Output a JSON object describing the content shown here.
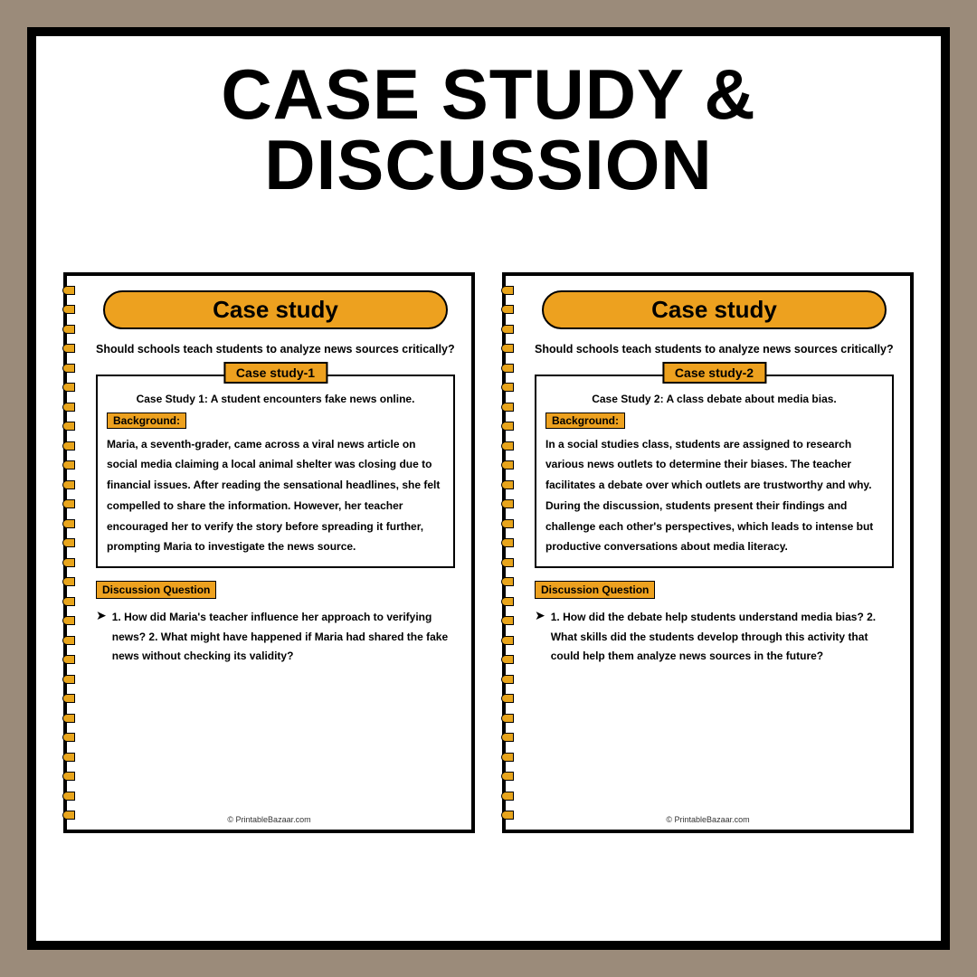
{
  "colors": {
    "outer_bg": "#9b8b7a",
    "frame_bg": "#ffffff",
    "frame_border": "#000000",
    "accent": "#eda11f",
    "text": "#000000"
  },
  "main_title": "Case study & Discussion",
  "pages": [
    {
      "header": "Case study",
      "question": "Should schools teach students to analyze news sources critically?",
      "case_label": "Case study-1",
      "case_title": "Case Study 1: A student encounters fake news online.",
      "background_label": "Background:",
      "background_text": "Maria, a seventh-grader, came across a viral news article on social media claiming a local animal shelter was closing due to financial issues. After reading the sensational headlines, she felt compelled to share the information. However, her teacher encouraged her to verify the story before spreading it further, prompting Maria to investigate the news source.",
      "dq_label": "Discussion Question",
      "dq_text": "1. How did Maria's teacher influence her approach to verifying news? 2. What might have happened if Maria had shared the fake news without checking its validity?",
      "footer": "© PrintableBazaar.com"
    },
    {
      "header": "Case study",
      "question": "Should schools teach students to analyze news sources critically?",
      "case_label": "Case study-2",
      "case_title": "Case Study 2: A class debate about media bias.",
      "background_label": "Background:",
      "background_text": "In a social studies class, students are assigned to research various news outlets to determine their biases. The teacher facilitates a debate over which outlets are trustworthy and why. During the discussion, students present their findings and challenge each other's perspectives, which leads to intense but productive conversations about media literacy.",
      "dq_label": "Discussion Question",
      "dq_text": "1. How did the debate help students understand media bias? 2. What skills did the students develop through this activity that could help them analyze news sources in the future?",
      "footer": "© PrintableBazaar.com"
    }
  ]
}
